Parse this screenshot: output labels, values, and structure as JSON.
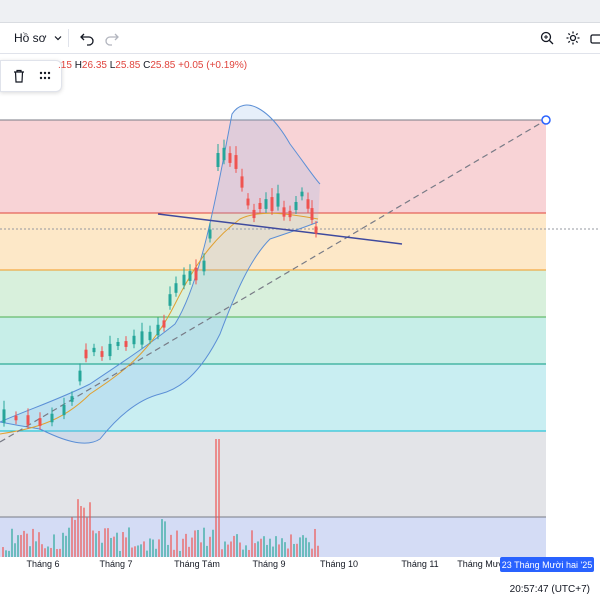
{
  "toolbar": {
    "profile_label": "Hồ sơ",
    "profile_icon": "chevron-down-icon",
    "undo_icon": "undo-icon",
    "redo_icon": "redo-icon",
    "settings_icon": "gear-icon",
    "search_icon": "search-icon"
  },
  "ohlc": {
    "open_partial": ".15",
    "high_label": "H",
    "high": "26.35",
    "low_label": "L",
    "low": "25.85",
    "close_label": "C",
    "close": "25.85",
    "change": "+0.05 (+0.19%)"
  },
  "floating_toolbar": {
    "delete_icon": "trash-icon",
    "grid_icon": "dots-grid-icon"
  },
  "date_axis": {
    "labels": [
      "Tháng 6",
      "Tháng 7",
      "Tháng Tám",
      "Tháng 9",
      "Tháng 10",
      "Tháng 11",
      "Tháng Mười"
    ],
    "crosshair_date": "23 Tháng Mười hai '25"
  },
  "status": {
    "clock": "20:57:47 (UTC+7)"
  },
  "colors": {
    "candle_up": "#26a69a",
    "candle_down": "#ef5350",
    "fib_red_zone": "#f8d3d6",
    "fib_orange_zone": "#fde8c8",
    "fib_green_zone": "#d8f0dc",
    "fib_teal_zone": "#c7eee8",
    "fib_cyan_zone": "#c9eef2",
    "fib_gray_zone": "#e3e4e8",
    "fib_blue_zone": "#d4dcf5"
  }
}
